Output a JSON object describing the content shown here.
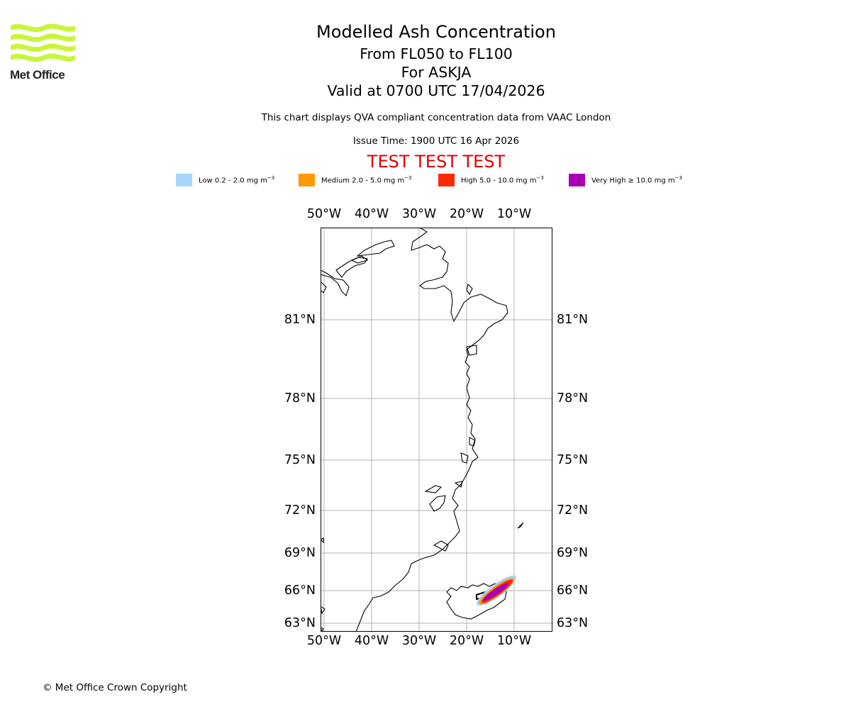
{
  "header": {
    "logo_text": "Met Office",
    "title": "Modelled Ash Concentration",
    "level_range": "From FL050 to FL100",
    "volcano": "For ASKJA",
    "valid_time": "Valid at 0700 UTC 17/04/2026",
    "compliance_note": "This chart displays QVA compliant concentration data from VAAC London",
    "issue_time": "Issue Time: 1900 UTC 16 Apr 2026",
    "test_banner": "TEST TEST TEST"
  },
  "legend": [
    {
      "label": "Low 0.2 - 2.0 mg m",
      "unit_exp": "−3",
      "color": "#a6d5fb"
    },
    {
      "label": "Medium 2.0 - 5.0 mg m",
      "unit_exp": "−3",
      "color": "#ff9900"
    },
    {
      "label": "High 5.0 - 10.0 mg m",
      "unit_exp": "−3",
      "color": "#ff2a00"
    },
    {
      "label": "Very High  ≥  10.0 mg m",
      "unit_exp": "−3",
      "color": "#a800b3"
    }
  ],
  "map": {
    "lon_ticks": [
      "50°W",
      "40°W",
      "30°W",
      "20°W",
      "10°W"
    ],
    "lat_ticks": [
      "81°N",
      "78°N",
      "75°N",
      "72°N",
      "69°N",
      "66°N",
      "63°N"
    ],
    "ash_plume": {
      "source_lat": 65.0,
      "source_lon": -16.7,
      "direction": "north-east"
    }
  },
  "footer": {
    "copyright": "© Met Office Crown Copyright"
  }
}
